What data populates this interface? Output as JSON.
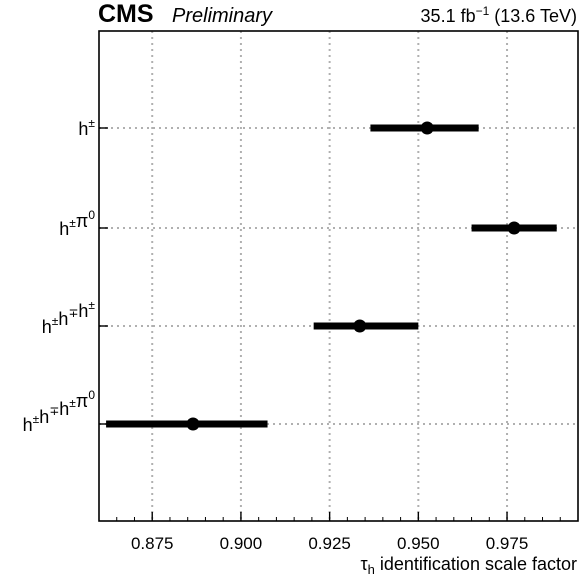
{
  "header": {
    "experiment": "CMS",
    "status": "Preliminary",
    "lumi_value": "35.1 fb",
    "lumi_exp": "−1",
    "energy": " (13.6 TeV)"
  },
  "chart_data": {
    "type": "scatter",
    "orientation": "horizontal",
    "xlabel_main": "τ",
    "xlabel_sub": "h",
    "xlabel_rest": " identification scale factor",
    "xlim": [
      0.86,
      0.995
    ],
    "xticks": [
      0.875,
      0.9,
      0.925,
      0.95,
      0.975
    ],
    "xtick_labels": [
      "0.875",
      "0.900",
      "0.925",
      "0.950",
      "0.975"
    ],
    "grid": true,
    "categories": [
      {
        "label": "h±",
        "value": 0.9525,
        "err_low": 0.9365,
        "err_high": 0.967
      },
      {
        "label": "h±π0",
        "value": 0.977,
        "err_low": 0.965,
        "err_high": 0.989
      },
      {
        "label": "h±h∓h±",
        "value": 0.9335,
        "err_low": 0.9205,
        "err_high": 0.95
      },
      {
        "label": "h±h∓h±π0",
        "value": 0.8865,
        "err_low": 0.862,
        "err_high": 0.9075
      }
    ],
    "category_labels": [
      {
        "base": "h",
        "sup": "±"
      },
      {
        "base": "h",
        "sup": "±",
        "base2": "π",
        "sup2": "0"
      },
      {
        "base": "h",
        "sup": "±",
        "base2": "h",
        "sup2": "∓",
        "base3": "h",
        "sup3": "±"
      },
      {
        "base": "h",
        "sup": "±",
        "base2": "h",
        "sup2": "∓",
        "base3": "h",
        "sup3": "±",
        "base4": "π",
        "sup4": "0"
      }
    ]
  }
}
